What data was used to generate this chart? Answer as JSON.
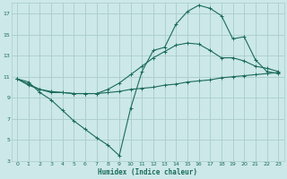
{
  "background_color": "#cce8e8",
  "grid_color": "#aacccc",
  "line_color": "#1a6b5a",
  "xlabel": "Humidex (Indice chaleur)",
  "xlim": [
    -0.5,
    23.5
  ],
  "ylim": [
    3,
    18
  ],
  "yticks": [
    3,
    5,
    7,
    9,
    11,
    13,
    15,
    17
  ],
  "xticks": [
    0,
    1,
    2,
    3,
    4,
    5,
    6,
    7,
    8,
    9,
    10,
    11,
    12,
    13,
    14,
    15,
    16,
    17,
    18,
    19,
    20,
    21,
    22,
    23
  ],
  "line1_x": [
    0,
    1,
    2,
    3,
    4,
    5,
    6,
    7,
    8,
    9,
    10,
    11,
    12,
    13,
    14,
    15,
    16,
    17,
    18,
    19,
    20,
    21,
    22,
    23
  ],
  "line1_y": [
    10.8,
    10.3,
    9.8,
    9.5,
    9.5,
    9.4,
    9.4,
    9.4,
    9.5,
    9.6,
    9.8,
    9.9,
    10.0,
    10.2,
    10.3,
    10.5,
    10.6,
    10.7,
    10.9,
    11.0,
    11.1,
    11.2,
    11.3,
    11.4
  ],
  "line2_x": [
    0,
    1,
    2,
    3,
    4,
    5,
    6,
    7,
    8,
    9,
    10,
    11,
    12,
    13,
    14,
    15,
    16,
    17,
    18,
    19,
    20,
    21,
    22,
    23
  ],
  "line2_y": [
    10.8,
    10.2,
    9.8,
    9.6,
    9.5,
    9.4,
    9.4,
    9.4,
    9.8,
    10.4,
    11.2,
    12.0,
    12.8,
    13.4,
    14.0,
    14.2,
    14.1,
    13.5,
    12.8,
    12.8,
    12.5,
    12.0,
    11.8,
    11.5
  ],
  "line3_x": [
    0,
    1,
    2,
    3,
    4,
    5,
    6,
    7,
    8,
    9,
    10,
    11,
    12,
    13,
    14,
    15,
    16,
    17,
    18,
    19,
    20,
    21,
    22,
    23
  ],
  "line3_y": [
    10.8,
    10.5,
    9.5,
    8.8,
    7.8,
    6.8,
    6.0,
    5.2,
    4.5,
    3.5,
    8.0,
    11.5,
    13.5,
    13.8,
    16.0,
    17.2,
    17.8,
    17.5,
    16.8,
    14.6,
    14.8,
    12.6,
    11.5,
    11.3
  ]
}
